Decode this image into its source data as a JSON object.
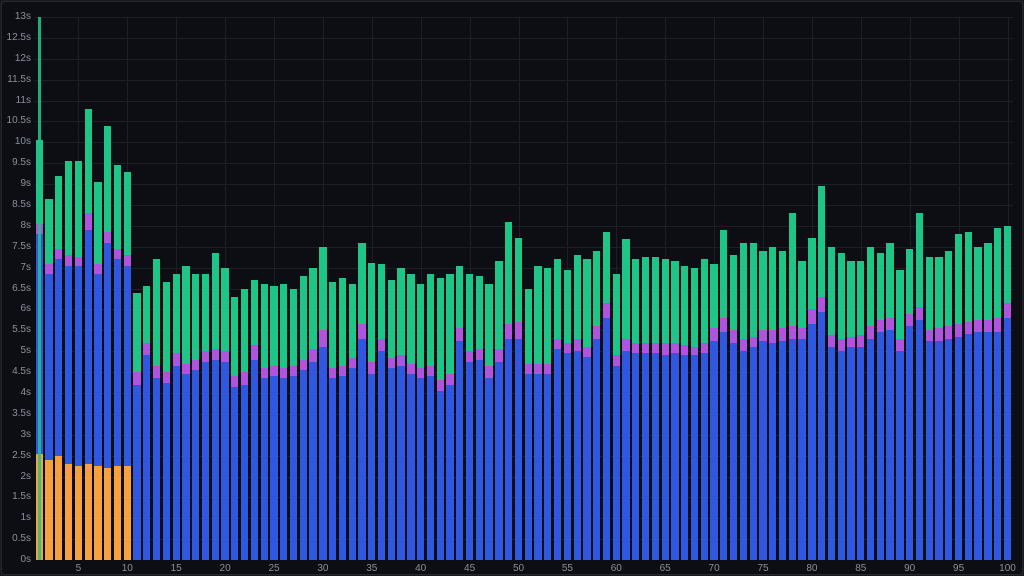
{
  "panel": {
    "background": "#0d0e13",
    "frame_background": "#181a20",
    "border_color": "#26282e",
    "gridline_color": "#1d1f25",
    "axis_text_color": "#8b8f99"
  },
  "chart_data": {
    "type": "bar",
    "stacked": true,
    "title": "",
    "xlabel": "",
    "ylabel": "",
    "y_unit": "s",
    "ylim": [
      0,
      13
    ],
    "x_range": [
      1,
      100
    ],
    "grid": true,
    "legend": "none",
    "y_ticks": [
      "0s",
      "0.5s",
      "1s",
      "1.5s",
      "2s",
      "2.5s",
      "3s",
      "3.5s",
      "4s",
      "4.5s",
      "5s",
      "5.5s",
      "6s",
      "6.5s",
      "7s",
      "7.5s",
      "8s",
      "8.5s",
      "9s",
      "9.5s",
      "10s",
      "10.5s",
      "11s",
      "11.5s",
      "12s",
      "12.5s",
      "13s"
    ],
    "x_ticks": [
      "5",
      "10",
      "15",
      "20",
      "25",
      "30",
      "35",
      "40",
      "45",
      "50",
      "55",
      "60",
      "65",
      "70",
      "75",
      "80",
      "85",
      "90",
      "95",
      "100"
    ],
    "series": [
      {
        "name": "orange",
        "color": "#f6a13d",
        "values": [
          2.55,
          2.4,
          2.5,
          2.3,
          2.25,
          2.3,
          2.25,
          2.2,
          2.25,
          2.25,
          0,
          0,
          0,
          0,
          0,
          0,
          0,
          0,
          0,
          0,
          0,
          0,
          0,
          0,
          0,
          0,
          0,
          0,
          0,
          0,
          0,
          0,
          0,
          0,
          0,
          0,
          0,
          0,
          0,
          0,
          0,
          0,
          0,
          0,
          0,
          0,
          0,
          0,
          0,
          0,
          0,
          0,
          0,
          0,
          0,
          0,
          0,
          0,
          0,
          0,
          0,
          0,
          0,
          0,
          0,
          0,
          0,
          0,
          0,
          0,
          0,
          0,
          0,
          0,
          0,
          0,
          0,
          0,
          0,
          0,
          0,
          0,
          0,
          0,
          0,
          0,
          0,
          0,
          0,
          0,
          0,
          0,
          0,
          0,
          0,
          0,
          0,
          0,
          0,
          0
        ]
      },
      {
        "name": "blue",
        "color": "#3057e0",
        "values": [
          5.25,
          4.45,
          4.7,
          4.75,
          4.8,
          5.6,
          4.6,
          5.4,
          4.95,
          4.8,
          4.2,
          4.9,
          4.35,
          4.25,
          4.65,
          4.45,
          4.55,
          4.75,
          4.8,
          4.75,
          4.15,
          4.2,
          4.8,
          4.35,
          4.4,
          4.35,
          4.4,
          4.55,
          4.75,
          5.1,
          4.35,
          4.4,
          4.6,
          5.3,
          4.45,
          5.0,
          4.6,
          4.65,
          4.45,
          4.35,
          4.4,
          4.05,
          4.2,
          5.25,
          4.75,
          4.8,
          4.35,
          4.75,
          5.3,
          5.3,
          4.45,
          4.45,
          4.45,
          5.05,
          4.95,
          5.0,
          4.85,
          5.3,
          5.8,
          4.65,
          5.0,
          4.95,
          4.95,
          4.95,
          4.9,
          4.95,
          4.9,
          4.9,
          4.95,
          5.25,
          5.45,
          5.2,
          5.0,
          5.1,
          5.25,
          5.2,
          5.25,
          5.3,
          5.3,
          5.65,
          5.95,
          5.1,
          5.0,
          5.1,
          5.1,
          5.3,
          5.45,
          5.5,
          5.0,
          5.6,
          5.75,
          5.25,
          5.25,
          5.3,
          5.35,
          5.4,
          5.45,
          5.45,
          5.45,
          5.8
        ]
      },
      {
        "name": "purple",
        "color": "#ae54dd",
        "values": [
          0.25,
          0.25,
          0.25,
          0.25,
          0.2,
          0.4,
          0.25,
          0.25,
          0.25,
          0.25,
          0.3,
          0.3,
          0.3,
          0.25,
          0.3,
          0.25,
          0.25,
          0.25,
          0.25,
          0.25,
          0.25,
          0.3,
          0.35,
          0.25,
          0.25,
          0.25,
          0.25,
          0.25,
          0.3,
          0.4,
          0.25,
          0.25,
          0.25,
          0.35,
          0.3,
          0.3,
          0.25,
          0.25,
          0.25,
          0.25,
          0.25,
          0.25,
          0.25,
          0.3,
          0.25,
          0.25,
          0.3,
          0.3,
          0.35,
          0.4,
          0.25,
          0.25,
          0.25,
          0.25,
          0.25,
          0.3,
          0.25,
          0.3,
          0.35,
          0.25,
          0.3,
          0.25,
          0.25,
          0.25,
          0.3,
          0.25,
          0.25,
          0.2,
          0.25,
          0.3,
          0.35,
          0.3,
          0.3,
          0.25,
          0.25,
          0.3,
          0.3,
          0.3,
          0.25,
          0.35,
          0.35,
          0.3,
          0.3,
          0.25,
          0.3,
          0.3,
          0.3,
          0.3,
          0.3,
          0.3,
          0.3,
          0.25,
          0.3,
          0.3,
          0.3,
          0.3,
          0.3,
          0.3,
          0.35,
          0.35
        ]
      },
      {
        "name": "green",
        "color": "#1fc487",
        "values": [
          2.0,
          1.55,
          1.75,
          2.25,
          2.3,
          2.5,
          1.95,
          2.55,
          2.0,
          2.0,
          1.9,
          1.35,
          2.55,
          2.15,
          1.9,
          2.35,
          2.05,
          1.85,
          2.3,
          2.0,
          1.9,
          2.0,
          1.55,
          2.0,
          1.9,
          2.0,
          1.85,
          2.0,
          1.95,
          2.0,
          2.05,
          2.1,
          1.75,
          1.95,
          2.35,
          1.8,
          1.85,
          2.1,
          2.15,
          2.0,
          2.2,
          2.45,
          2.4,
          1.5,
          1.85,
          1.75,
          1.95,
          2.1,
          2.45,
          2.0,
          1.8,
          2.35,
          2.3,
          1.9,
          1.75,
          2.0,
          2.1,
          1.8,
          1.7,
          1.95,
          2.4,
          2.0,
          2.05,
          2.05,
          2.0,
          1.95,
          1.9,
          1.9,
          2.0,
          1.55,
          2.1,
          1.8,
          2.3,
          2.25,
          1.9,
          2.0,
          1.85,
          2.7,
          1.6,
          1.7,
          2.65,
          2.1,
          2.05,
          1.8,
          1.75,
          1.9,
          1.6,
          1.8,
          1.65,
          1.55,
          2.25,
          1.75,
          1.7,
          1.8,
          2.15,
          2.15,
          1.75,
          1.85,
          2.15,
          1.85
        ]
      }
    ],
    "outlier_spike": {
      "x": 1,
      "seconds": 13,
      "label": "13s",
      "color": "#1fc487"
    }
  }
}
